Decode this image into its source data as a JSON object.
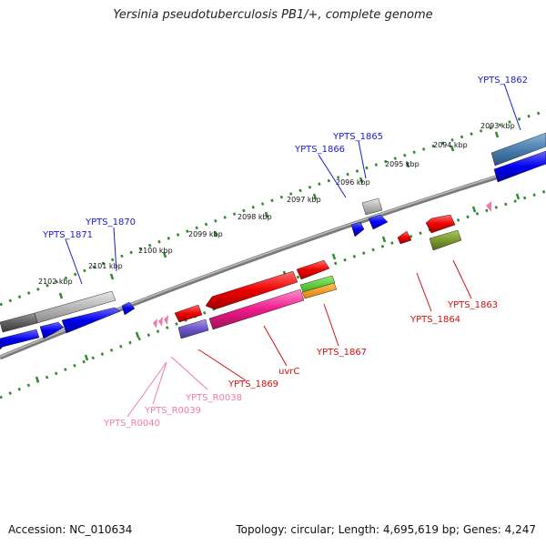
{
  "title": "Yersinia pseudotuberculosis PB1/+, complete genome",
  "footer": {
    "accession": "Accession: NC_010634",
    "info": "Topology: circular; Length: 4,695,619 bp; Genes: 4,247"
  },
  "colors": {
    "backbone": "#8a8a8a",
    "ruler": "#2e8b2e",
    "plus_label": "#1a1ad0",
    "minus_label": "#d01010",
    "rna_label": "#f07aa8"
  },
  "ruler_labels": [
    "2093 kbp",
    "2094 kbp",
    "2095 kbp",
    "2096 kbp",
    "2097 kbp",
    "2098 kbp",
    "2099 kbp",
    "2100 kbp",
    "2101 kbp",
    "2102 kbp"
  ],
  "gene_labels": {
    "plus": [
      "YPTS_1862",
      "YPTS_1865",
      "YPTS_1866",
      "YPTS_1870",
      "YPTS_1871"
    ],
    "minus": [
      "YPTS_1863",
      "YPTS_1864",
      "YPTS_1867",
      "uvrC",
      "YPTS_1869"
    ],
    "rna": [
      "YPTS_R0038",
      "YPTS_R0039",
      "YPTS_R0040"
    ]
  }
}
